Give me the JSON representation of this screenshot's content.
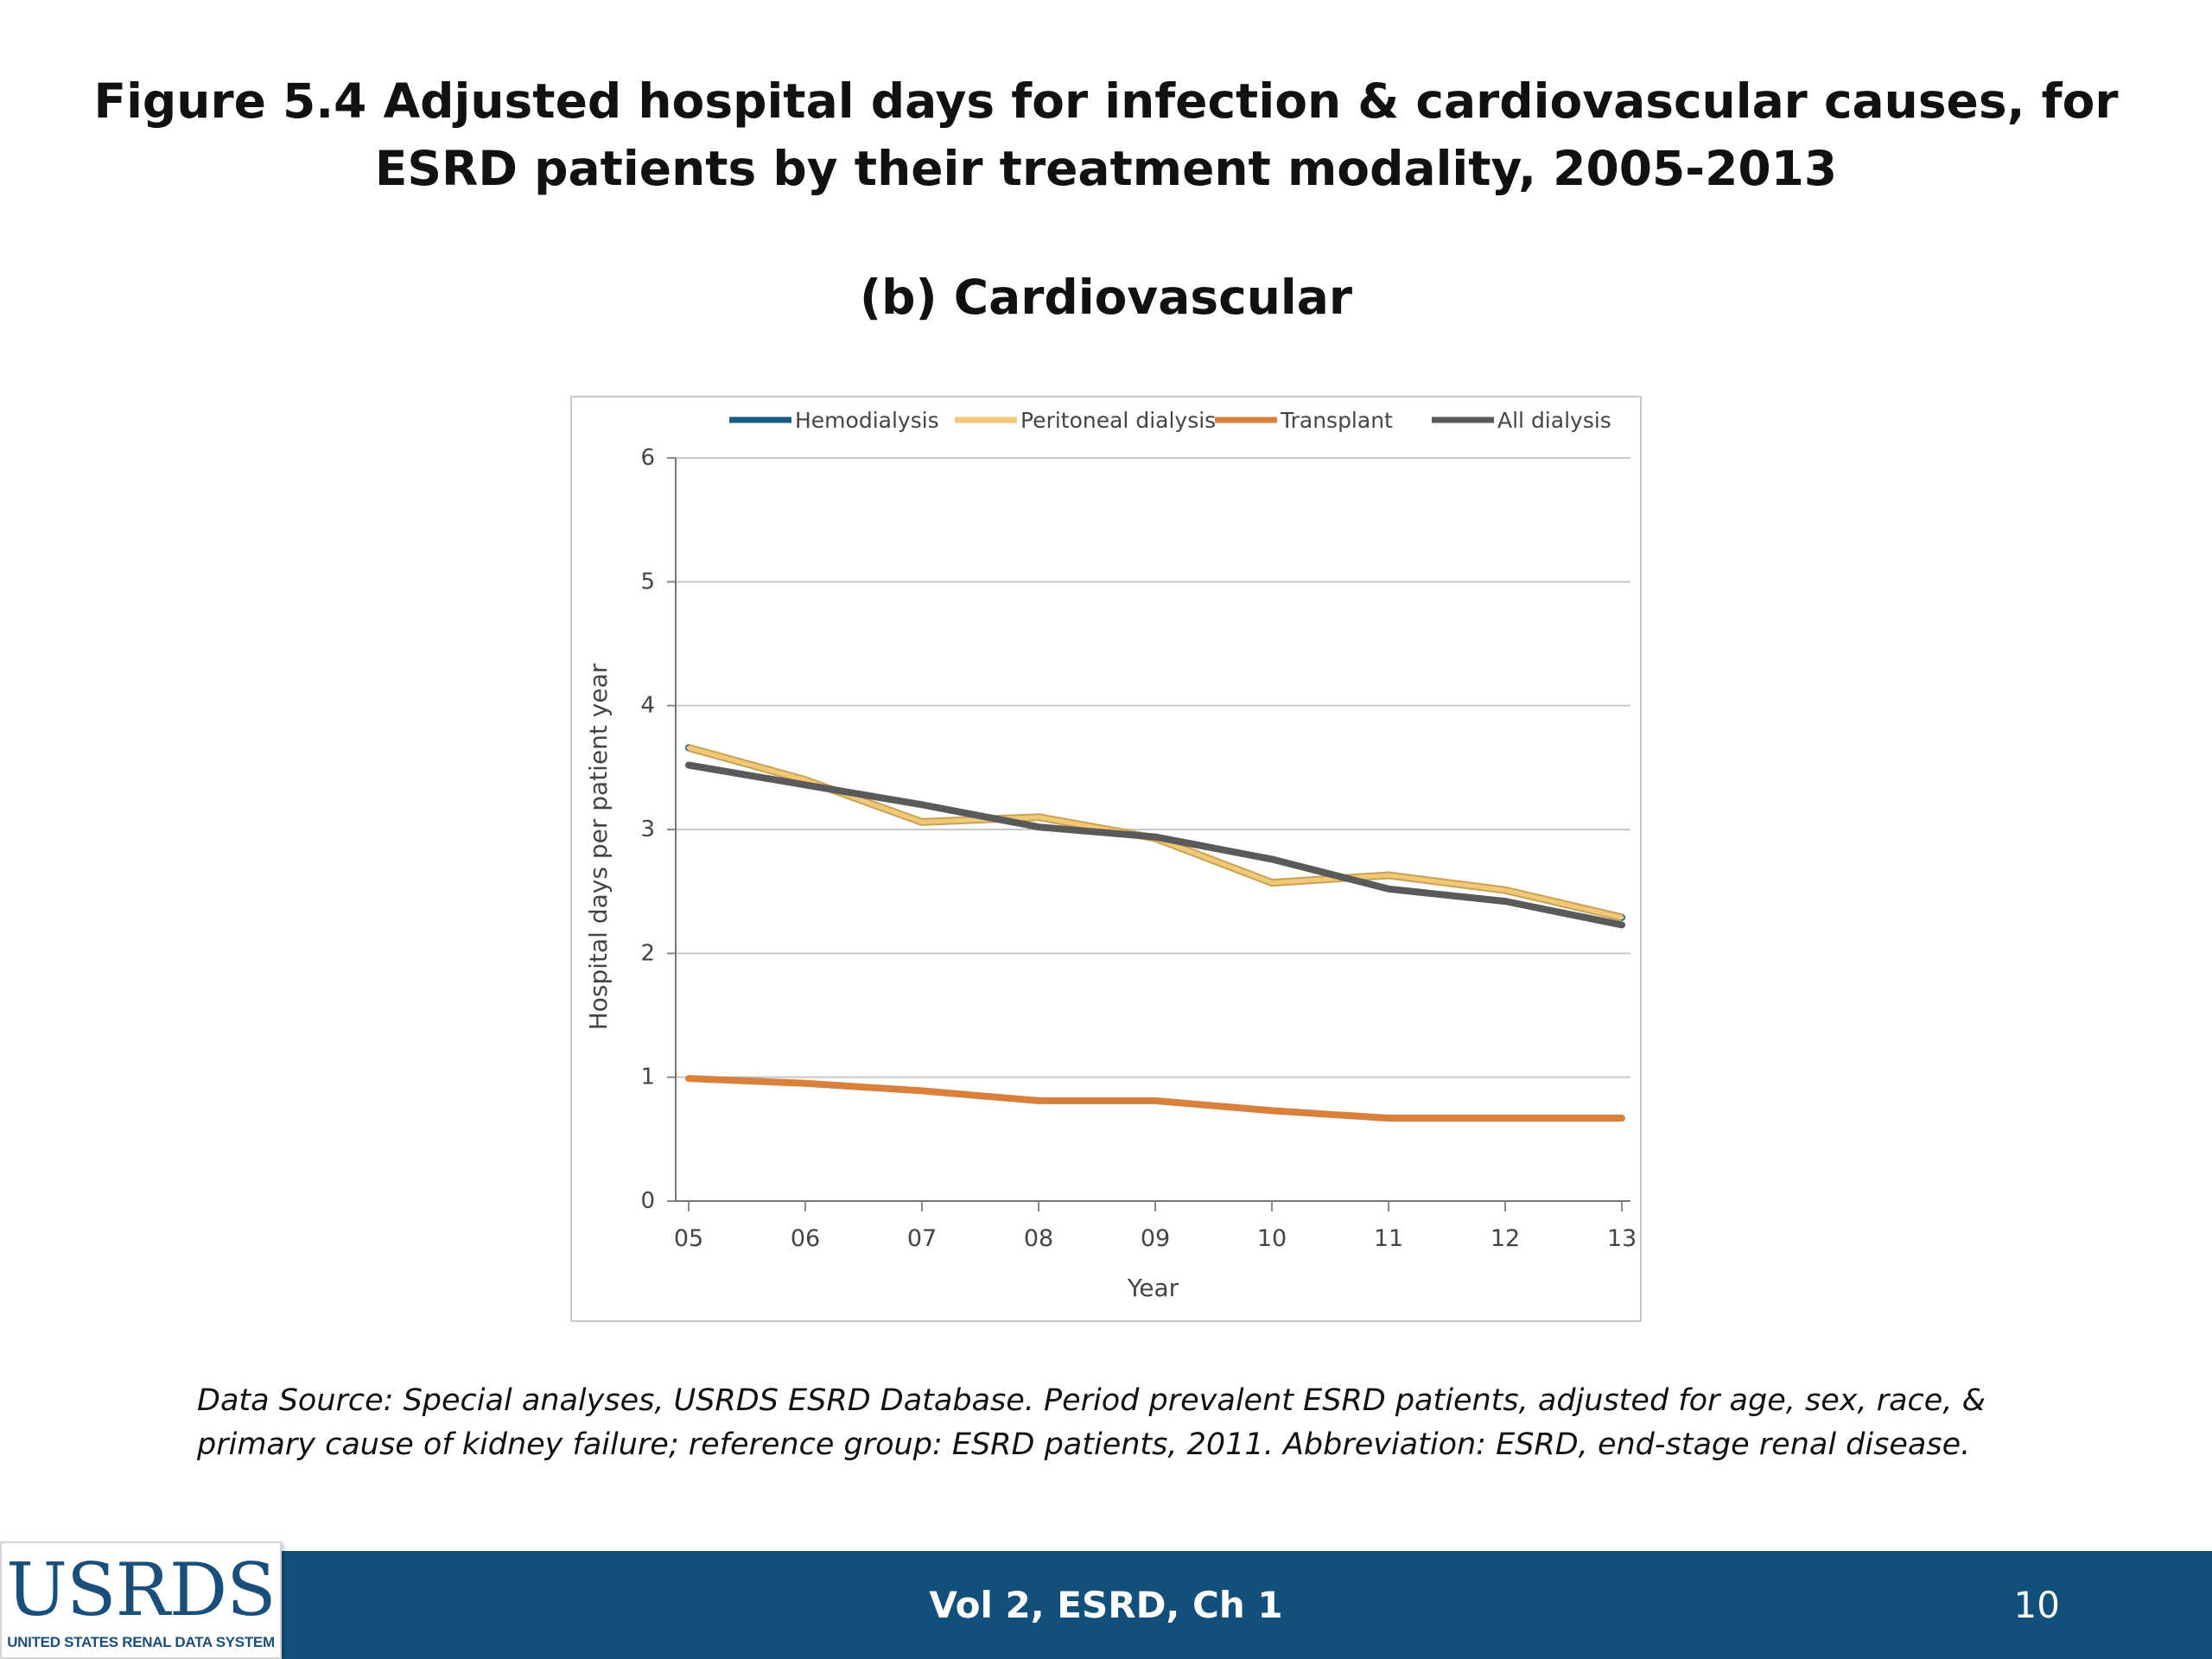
{
  "slide": {
    "title": "Figure 5.4 Adjusted hospital days for infection & cardiovascular causes, for ESRD patients by their treatment modality, 2005-2013",
    "subtitle": "(b) Cardiovascular",
    "source_note": "Data Source: Special analyses, USRDS ESRD Database. Period prevalent ESRD patients, adjusted for age, sex, race, & primary cause of kidney failure; reference group: ESRD patients, 2011. Abbreviation: ESRD, end-stage renal disease."
  },
  "footer": {
    "center_text": "Vol 2, ESRD, Ch 1",
    "page_number": "10",
    "logo_text": "USRDS",
    "logo_subtext": "UNITED STATES RENAL DATA SYSTEM",
    "bar_color": "#124f7b"
  },
  "chart_data": {
    "type": "line",
    "title": "",
    "xlabel": "Year",
    "ylabel": "Hospital days per patient year",
    "categories": [
      "05",
      "06",
      "07",
      "08",
      "09",
      "10",
      "11",
      "12",
      "13"
    ],
    "ylim": [
      0,
      6
    ],
    "yticks": [
      "0",
      "1",
      "2",
      "3",
      "4",
      "5",
      "6"
    ],
    "grid": true,
    "legend_position": "top",
    "series": [
      {
        "name": "Hemodialysis",
        "color": "#1b5a86",
        "values": [
          3.66,
          3.4,
          3.06,
          3.1,
          2.93,
          2.57,
          2.63,
          2.51,
          2.29
        ]
      },
      {
        "name": "Peritoneal dialysis",
        "color": "#f0c878",
        "values": [
          3.66,
          3.4,
          3.06,
          3.1,
          2.93,
          2.57,
          2.63,
          2.51,
          2.29
        ]
      },
      {
        "name": "Transplant",
        "color": "#d9813c",
        "values": [
          0.99,
          0.95,
          0.89,
          0.81,
          0.81,
          0.73,
          0.67,
          0.67,
          0.67
        ]
      },
      {
        "name": "All dialysis",
        "color": "#5a5a5a",
        "values": [
          3.52,
          3.36,
          3.2,
          3.02,
          2.94,
          2.76,
          2.52,
          2.42,
          2.23
        ]
      }
    ]
  }
}
